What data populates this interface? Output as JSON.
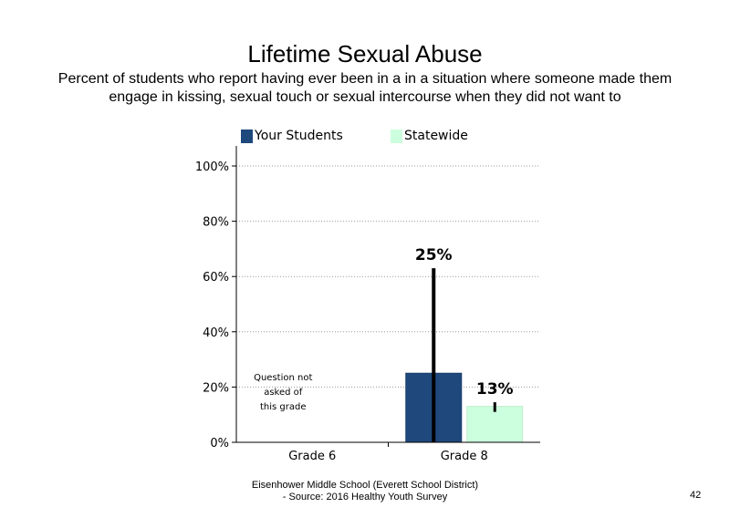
{
  "chart_data": {
    "type": "bar",
    "title": "Lifetime Sexual Abuse",
    "subtitle": "Percent of students who report having ever been in a in a situation where someone made them engage in kissing, sexual touch or sexual intercourse when they did not want to",
    "categories": [
      "Grade 6",
      "Grade 8"
    ],
    "series": [
      {
        "name": "Your Students",
        "color": "#1f497d",
        "values": [
          null,
          25
        ],
        "error_high": [
          null,
          63
        ],
        "error_low": [
          null,
          0
        ]
      },
      {
        "name": "Statewide",
        "color": "#ccffdd",
        "values": [
          null,
          13
        ],
        "error_high": [
          null,
          14.5
        ],
        "error_low": [
          null,
          11
        ]
      }
    ],
    "data_labels": [
      "25%",
      "13%"
    ],
    "ylim": [
      0,
      100
    ],
    "yticks": [
      0,
      20,
      40,
      60,
      80,
      100
    ],
    "ytick_labels": [
      "0%",
      "20%",
      "40%",
      "60%",
      "80%",
      "100%"
    ],
    "xlabel": "",
    "ylabel": "",
    "grid": "dotted horizontal",
    "legend_position": "top",
    "annotation": "Question not asked of this grade"
  },
  "legend": {
    "series1_label": "Your Students",
    "series2_label": "Statewide"
  },
  "annotation_lines": [
    "Question not",
    "asked of",
    "this grade"
  ],
  "footer": {
    "line1": "Eisenhower Middle School (Everett School District)",
    "line2": "- Source: 2016 Healthy Youth Survey"
  },
  "page_number": "42"
}
